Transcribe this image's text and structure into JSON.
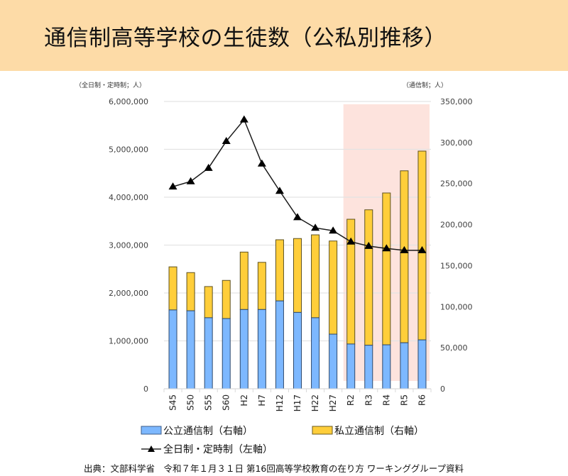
{
  "header": {
    "title": "通信制高等学校の生徒数（公私別推移）"
  },
  "colors": {
    "title_band": "#fddba7",
    "public_bar": "#7db8ff",
    "private_bar": "#ffce3a",
    "line": "#000000",
    "highlight_region": "#fde3dd",
    "gridline": "#e3e3e3"
  },
  "chart_data": {
    "type": "bar",
    "stacked": true,
    "title": "通信制高等学校の生徒数（公私別推移）",
    "categories": [
      "S45",
      "S50",
      "S55",
      "S60",
      "H2",
      "H7",
      "H12",
      "H17",
      "H22",
      "H27",
      "R2",
      "R3",
      "R4",
      "R5",
      "R6"
    ],
    "series": [
      {
        "name": "公立通信制（右軸）",
        "type": "bar",
        "axis": "right",
        "values": [
          96000,
          95000,
          86500,
          85500,
          96500,
          96500,
          107000,
          93000,
          86500,
          66500,
          54500,
          53000,
          53500,
          56000,
          59500
        ]
      },
      {
        "name": "私立通信制（右軸）",
        "type": "bar",
        "axis": "right",
        "values": [
          52500,
          46500,
          38000,
          46500,
          70000,
          57500,
          74500,
          90000,
          101000,
          113500,
          152000,
          165000,
          185000,
          209500,
          230000
        ]
      },
      {
        "name": "全日制・定時制（左軸）",
        "type": "line",
        "axis": "left",
        "marker": "triangle",
        "values": [
          4220000,
          4330000,
          4610000,
          5170000,
          5620000,
          4700000,
          4130000,
          3580000,
          3360000,
          3300000,
          3070000,
          2980000,
          2930000,
          2890000,
          2890000
        ]
      }
    ],
    "y_left": {
      "label": "（全日制・定時制；人）",
      "range": [
        0,
        6000000
      ],
      "ticks": [
        "0",
        "1,000,000",
        "2,000,000",
        "3,000,000",
        "4,000,000",
        "5,000,000",
        "6,000,000"
      ],
      "tick_values": [
        0,
        1000000,
        2000000,
        3000000,
        4000000,
        5000000,
        6000000
      ]
    },
    "y_right": {
      "label": "（通信制；人）",
      "range": [
        0,
        350000
      ],
      "ticks": [
        "0",
        "50,000",
        "100,000",
        "150,000",
        "200,000",
        "250,000",
        "300,000",
        "350,000"
      ],
      "tick_values": [
        0,
        50000,
        100000,
        150000,
        200000,
        250000,
        300000,
        350000
      ]
    },
    "xlabel": "",
    "grid": true,
    "highlight": {
      "from": "R2",
      "to": "R6"
    },
    "legend": {
      "placement": "bottom",
      "items": [
        "公立通信制（右軸）",
        "私立通信制（右軸）",
        "全日制・定時制（左軸）"
      ]
    }
  },
  "footer": {
    "source": "出典：文部科学省　令和７年１月３１日 第16回高等学校教育の在り方 ワーキンググループ資料"
  }
}
